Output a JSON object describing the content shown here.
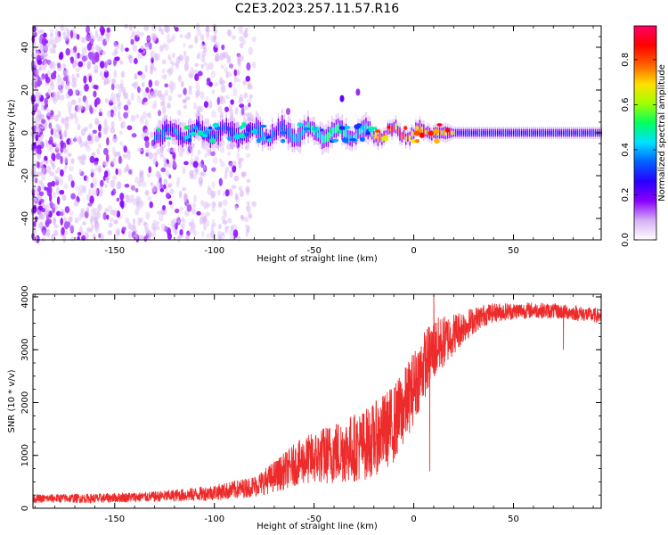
{
  "title": "C2E3.2023.257.11.57.R16",
  "chart_data": [
    {
      "type": "heatmap",
      "name": "spectrogram",
      "xlabel": "Height of straight line (km)",
      "ylabel": "Frequency (Hz)",
      "xlim": [
        -191,
        94
      ],
      "ylim": [
        -50,
        50
      ],
      "x_ticks": [
        -150,
        -100,
        -50,
        0,
        50
      ],
      "x_tick_labels": [
        "-150",
        "-100",
        "-50",
        "0",
        "50"
      ],
      "y_ticks": [
        -40,
        -20,
        0,
        20,
        40
      ],
      "y_tick_labels": [
        "-40",
        "-20",
        "0",
        "20",
        "40"
      ],
      "noise_region_x": [
        -191,
        -80
      ],
      "signal_band": {
        "start_x": -130,
        "end_x": 94,
        "center_freq": 0,
        "peak_region_x": [
          -20,
          20
        ],
        "peak_amplitude": 0.95
      },
      "colorbar": {
        "label": "Normalized spectral amplitude",
        "range": [
          0.0,
          0.95
        ],
        "ticks": [
          0.0,
          0.2,
          0.4,
          0.6,
          0.8
        ],
        "tick_labels": [
          "0.0",
          "0.2",
          "0.4",
          "0.6",
          "0.8"
        ],
        "colors": [
          "#ffffff",
          "#d6b0f5",
          "#8a00ff",
          "#2a00ff",
          "#0060ff",
          "#00e0ff",
          "#00ff60",
          "#a0ff00",
          "#ffe000",
          "#ff6000",
          "#ff0000",
          "#ff0066"
        ]
      }
    },
    {
      "type": "line",
      "name": "snr",
      "xlabel": "Height of straight line (km)",
      "ylabel": "SNR (10 * v/v)",
      "xlim": [
        -191,
        94
      ],
      "ylim": [
        0,
        4050
      ],
      "x_ticks": [
        -150,
        -100,
        -50,
        0,
        50
      ],
      "x_tick_labels": [
        "-150",
        "-100",
        "-50",
        "0",
        "50"
      ],
      "y_ticks": [
        0,
        1000,
        2000,
        3000,
        4000
      ],
      "y_tick_labels": [
        "0",
        "1000",
        "2000",
        "3000",
        "4000"
      ],
      "color": "#ee2b2b",
      "series": [
        {
          "name": "SNR",
          "x": [
            -191,
            -175,
            -160,
            -150,
            -140,
            -130,
            -120,
            -110,
            -100,
            -95,
            -90,
            -85,
            -80,
            -75,
            -70,
            -65,
            -60,
            -55,
            -50,
            -45,
            -40,
            -35,
            -30,
            -25,
            -20,
            -15,
            -10,
            -5,
            0,
            5,
            10,
            15,
            20,
            25,
            30,
            35,
            40,
            45,
            50,
            55,
            60,
            65,
            70,
            75,
            80,
            85,
            90,
            94
          ],
          "y": [
            180,
            190,
            185,
            200,
            210,
            220,
            240,
            260,
            300,
            320,
            350,
            380,
            420,
            500,
            600,
            700,
            820,
            900,
            950,
            1000,
            1050,
            1100,
            1150,
            1200,
            1300,
            1450,
            1600,
            1900,
            2300,
            2700,
            3000,
            3150,
            3300,
            3450,
            3550,
            3650,
            3700,
            3720,
            3730,
            3740,
            3750,
            3740,
            3730,
            3720,
            3700,
            3680,
            3650,
            3640
          ],
          "band": [
            [
              -191,
              80
            ],
            [
              -130,
              100
            ],
            [
              -100,
              150
            ],
            [
              -80,
              200
            ],
            [
              -60,
              400
            ],
            [
              -50,
              500
            ],
            [
              -40,
              600
            ],
            [
              -30,
              650
            ],
            [
              -20,
              700
            ],
            [
              -10,
              750
            ],
            [
              0,
              700
            ],
            [
              10,
              600
            ],
            [
              20,
              400
            ],
            [
              30,
              250
            ],
            [
              40,
              180
            ],
            [
              60,
              150
            ],
            [
              94,
              140
            ]
          ],
          "notable_points": [
            {
              "x": 10,
              "y": 4030
            },
            {
              "x": 8,
              "y": 700
            },
            {
              "x": 75,
              "y": 3000
            }
          ]
        }
      ]
    }
  ]
}
